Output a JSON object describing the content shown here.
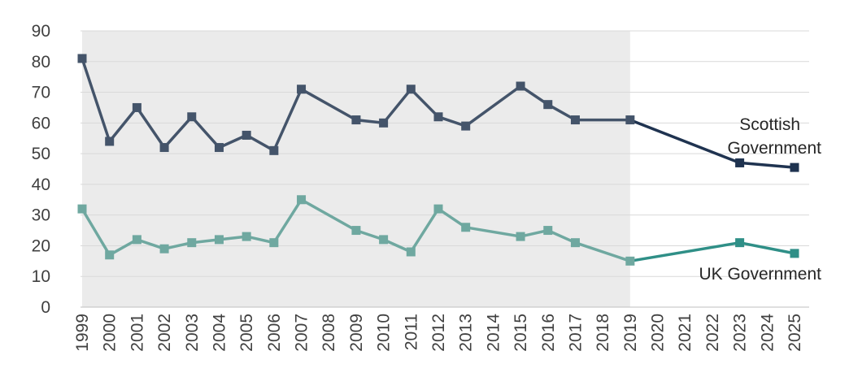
{
  "chart_data": {
    "type": "line",
    "title": "",
    "xlabel": "",
    "ylabel": "",
    "x": [
      "1999",
      "2000",
      "2001",
      "2002",
      "2003",
      "2004",
      "2005",
      "2006",
      "2007",
      "2008",
      "2009",
      "2010",
      "2011",
      "2012",
      "2013",
      "2014",
      "2015",
      "2016",
      "2017",
      "2018",
      "2019",
      "2020",
      "2021",
      "2022",
      "2023",
      "2024",
      "2025"
    ],
    "ylim": [
      0,
      90
    ],
    "yticks": [
      0,
      10,
      20,
      30,
      40,
      50,
      60,
      70,
      80,
      90
    ],
    "grid": true,
    "shaded_range": [
      "1999",
      "2019"
    ],
    "series": [
      {
        "name": "Scottish Government",
        "label_lines": [
          "Scottish",
          "Government"
        ],
        "color": "#44546a",
        "color_late": "#1f3350",
        "points": [
          {
            "x": "1999",
            "y": 81
          },
          {
            "x": "2000",
            "y": 54
          },
          {
            "x": "2001",
            "y": 65
          },
          {
            "x": "2002",
            "y": 52
          },
          {
            "x": "2003",
            "y": 62
          },
          {
            "x": "2004",
            "y": 52
          },
          {
            "x": "2005",
            "y": 56
          },
          {
            "x": "2006",
            "y": 51
          },
          {
            "x": "2007",
            "y": 71
          },
          {
            "x": "2009",
            "y": 61
          },
          {
            "x": "2010",
            "y": 60
          },
          {
            "x": "2011",
            "y": 71
          },
          {
            "x": "2012",
            "y": 62
          },
          {
            "x": "2013",
            "y": 59
          },
          {
            "x": "2015",
            "y": 72
          },
          {
            "x": "2016",
            "y": 66
          },
          {
            "x": "2017",
            "y": 61
          },
          {
            "x": "2019",
            "y": 61
          },
          {
            "x": "2023",
            "y": 47
          },
          {
            "x": "2025",
            "y": 45.5
          }
        ]
      },
      {
        "name": "UK Government",
        "label_lines": [
          "UK Government"
        ],
        "color": "#6fa8a0",
        "color_late": "#2f8f87",
        "points": [
          {
            "x": "1999",
            "y": 32
          },
          {
            "x": "2000",
            "y": 17
          },
          {
            "x": "2001",
            "y": 22
          },
          {
            "x": "2002",
            "y": 19
          },
          {
            "x": "2003",
            "y": 21
          },
          {
            "x": "2004",
            "y": 22
          },
          {
            "x": "2005",
            "y": 23
          },
          {
            "x": "2006",
            "y": 21
          },
          {
            "x": "2007",
            "y": 35
          },
          {
            "x": "2009",
            "y": 25
          },
          {
            "x": "2010",
            "y": 22
          },
          {
            "x": "2011",
            "y": 18
          },
          {
            "x": "2012",
            "y": 32
          },
          {
            "x": "2013",
            "y": 26
          },
          {
            "x": "2015",
            "y": 23
          },
          {
            "x": "2016",
            "y": 25
          },
          {
            "x": "2017",
            "y": 21
          },
          {
            "x": "2019",
            "y": 15
          },
          {
            "x": "2023",
            "y": 21
          },
          {
            "x": "2025",
            "y": 17.5
          }
        ]
      }
    ]
  }
}
